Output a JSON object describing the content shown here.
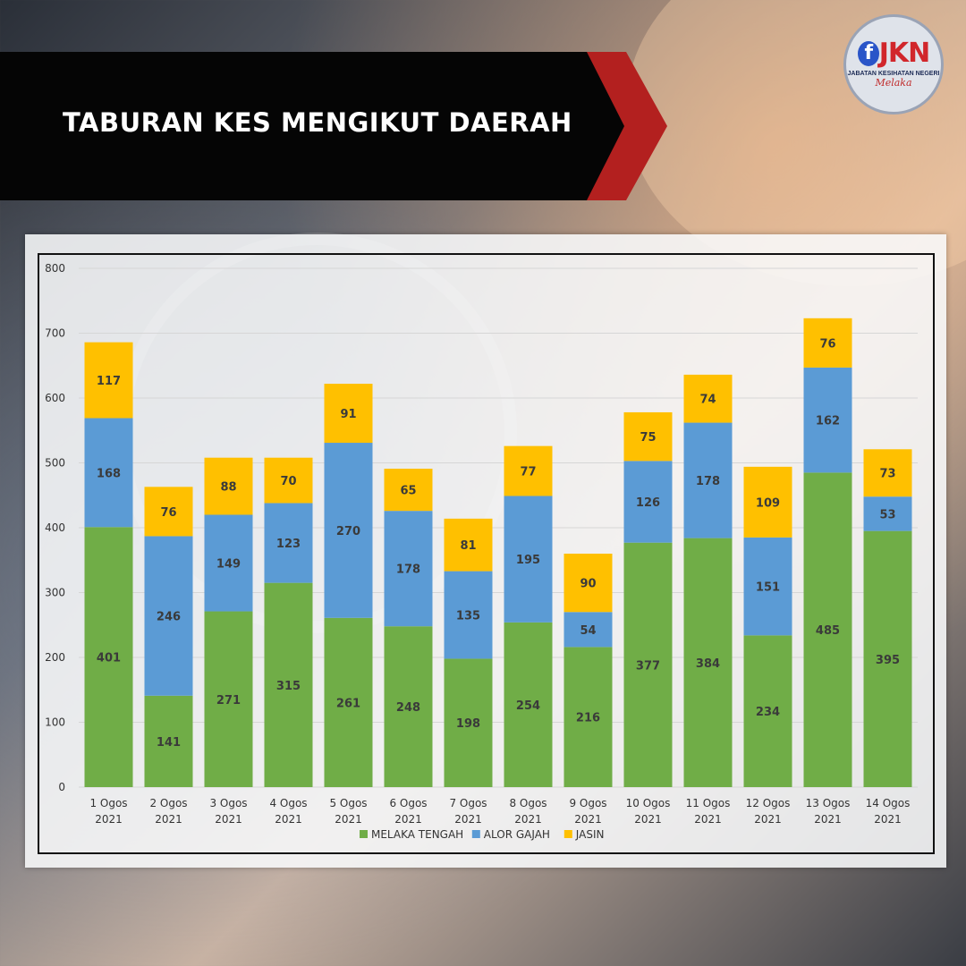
{
  "header": {
    "title": "TABURAN KES MENGIKUT DAERAH"
  },
  "logo": {
    "icon": "facebook-f-icon",
    "mark": "JKN",
    "subtitle": "JABATAN KESIHATAN NEGERI",
    "script": "Melaka"
  },
  "colors": {
    "banner": "#050505",
    "banner_accent": "#b3201f",
    "melaka_tengah": "#70ad47",
    "alor_gajah": "#5b9bd5",
    "jasin": "#ffc000"
  },
  "chart_data": {
    "type": "bar",
    "stacked": true,
    "categories": [
      [
        "1 Ogos",
        "2021"
      ],
      [
        "2 Ogos",
        "2021"
      ],
      [
        "3 Ogos",
        "2021"
      ],
      [
        "4 Ogos",
        "2021"
      ],
      [
        "5 Ogos",
        "2021"
      ],
      [
        "6 Ogos",
        "2021"
      ],
      [
        "7 Ogos",
        "2021"
      ],
      [
        "8 Ogos",
        "2021"
      ],
      [
        "9 Ogos",
        "2021"
      ],
      [
        "10 Ogos",
        "2021"
      ],
      [
        "11 Ogos",
        "2021"
      ],
      [
        "12 Ogos",
        "2021"
      ],
      [
        "13 Ogos",
        "2021"
      ],
      [
        "14 Ogos",
        "2021"
      ]
    ],
    "series": [
      {
        "name": "MELAKA TENGAH",
        "color": "#70ad47",
        "values": [
          401,
          141,
          271,
          315,
          261,
          248,
          198,
          254,
          216,
          377,
          384,
          234,
          485,
          395
        ]
      },
      {
        "name": "ALOR GAJAH",
        "color": "#5b9bd5",
        "values": [
          168,
          246,
          149,
          123,
          270,
          178,
          135,
          195,
          54,
          126,
          178,
          151,
          162,
          53
        ]
      },
      {
        "name": "JASIN",
        "color": "#ffc000",
        "values": [
          117,
          76,
          88,
          70,
          91,
          65,
          81,
          77,
          90,
          75,
          74,
          109,
          76,
          73
        ]
      }
    ],
    "ylim": [
      0,
      800
    ],
    "yticks": [
      0,
      100,
      200,
      300,
      400,
      500,
      600,
      700,
      800
    ],
    "grid": true,
    "legend": "bottom"
  }
}
